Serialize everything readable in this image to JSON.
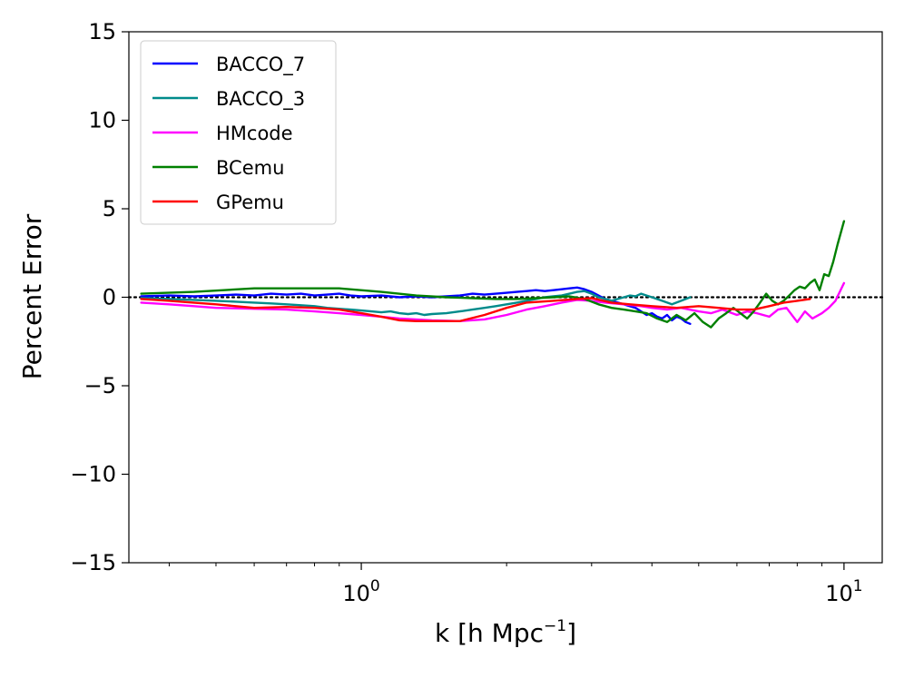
{
  "chart_data": {
    "type": "line",
    "title": "",
    "xlabel": "k [h Mpc",
    "xlabel_superscript": "−1",
    "xlabel_suffix": "]",
    "ylabel": "Percent Error",
    "xscale": "log",
    "xlim": [
      0.33,
      12
    ],
    "ylim": [
      -15,
      15
    ],
    "x_major_ticks": [
      {
        "value": 1,
        "base": "10",
        "exp": "0"
      },
      {
        "value": 10,
        "base": "10",
        "exp": "1"
      }
    ],
    "x_minor_ticks": [
      0.4,
      0.5,
      0.6,
      0.7,
      0.8,
      0.9,
      2,
      3,
      4,
      5,
      6,
      7,
      8,
      9
    ],
    "y_ticks": [
      {
        "value": 15,
        "label": "15"
      },
      {
        "value": 10,
        "label": "10"
      },
      {
        "value": 5,
        "label": "5"
      },
      {
        "value": 0,
        "label": "0"
      },
      {
        "value": -5,
        "label": "−5"
      },
      {
        "value": -10,
        "label": "−10"
      },
      {
        "value": -15,
        "label": "−15"
      }
    ],
    "reference_line": {
      "y": 0,
      "style": "dotted",
      "color": "#000000"
    },
    "grid": false,
    "legend_position": "top-left",
    "series": [
      {
        "name": "BACCO_7",
        "color": "#0000ff",
        "x": [
          0.35,
          0.4,
          0.45,
          0.5,
          0.55,
          0.6,
          0.65,
          0.7,
          0.75,
          0.8,
          0.85,
          0.9,
          0.95,
          1.0,
          1.1,
          1.2,
          1.3,
          1.4,
          1.5,
          1.6,
          1.7,
          1.8,
          1.9,
          2.0,
          2.1,
          2.2,
          2.3,
          2.4,
          2.5,
          2.6,
          2.7,
          2.8,
          2.9,
          3.0,
          3.1,
          3.2,
          3.3,
          3.4,
          3.5,
          3.6,
          3.7,
          3.8,
          3.9,
          4.0,
          4.1,
          4.2,
          4.3,
          4.4,
          4.5,
          4.6,
          4.7,
          4.8
        ],
        "y": [
          0.05,
          0.1,
          0.05,
          0.1,
          0.15,
          0.1,
          0.2,
          0.15,
          0.2,
          0.1,
          0.15,
          0.2,
          0.1,
          0.05,
          0.1,
          0.0,
          0.05,
          0.0,
          0.05,
          0.1,
          0.2,
          0.15,
          0.2,
          0.25,
          0.3,
          0.35,
          0.4,
          0.35,
          0.4,
          0.45,
          0.5,
          0.55,
          0.45,
          0.3,
          0.1,
          -0.1,
          -0.2,
          -0.3,
          -0.4,
          -0.5,
          -0.6,
          -0.8,
          -1.0,
          -0.9,
          -1.1,
          -1.2,
          -1.0,
          -1.3,
          -1.1,
          -1.2,
          -1.4,
          -1.5
        ]
      },
      {
        "name": "BACCO_3",
        "color": "#008b8b",
        "x": [
          0.35,
          0.4,
          0.45,
          0.5,
          0.55,
          0.6,
          0.65,
          0.7,
          0.75,
          0.8,
          0.85,
          0.9,
          0.95,
          1.0,
          1.05,
          1.1,
          1.15,
          1.2,
          1.25,
          1.3,
          1.35,
          1.4,
          1.5,
          1.6,
          1.7,
          1.8,
          1.9,
          2.0,
          2.1,
          2.2,
          2.3,
          2.4,
          2.5,
          2.6,
          2.7,
          2.8,
          2.9,
          3.0,
          3.1,
          3.2,
          3.3,
          3.4,
          3.5,
          3.6,
          3.7,
          3.8,
          3.9,
          4.0,
          4.2,
          4.4,
          4.6,
          4.8
        ],
        "y": [
          -0.05,
          -0.1,
          -0.15,
          -0.2,
          -0.25,
          -0.3,
          -0.35,
          -0.4,
          -0.45,
          -0.5,
          -0.6,
          -0.65,
          -0.7,
          -0.75,
          -0.8,
          -0.85,
          -0.8,
          -0.9,
          -0.95,
          -0.9,
          -1.0,
          -0.95,
          -0.9,
          -0.8,
          -0.7,
          -0.6,
          -0.5,
          -0.4,
          -0.3,
          -0.2,
          -0.1,
          0.0,
          0.05,
          0.1,
          0.2,
          0.3,
          0.35,
          0.2,
          0.0,
          -0.1,
          -0.2,
          -0.1,
          0.0,
          0.1,
          0.05,
          0.2,
          0.1,
          0.0,
          -0.2,
          -0.4,
          -0.2,
          0.0
        ]
      },
      {
        "name": "HMcode",
        "color": "#ff00ff",
        "x": [
          0.35,
          0.4,
          0.45,
          0.5,
          0.6,
          0.7,
          0.8,
          0.9,
          1.0,
          1.1,
          1.2,
          1.4,
          1.6,
          1.8,
          2.0,
          2.2,
          2.4,
          2.6,
          2.8,
          3.0,
          3.2,
          3.5,
          3.8,
          4.0,
          4.3,
          4.6,
          5.0,
          5.3,
          5.6,
          6.0,
          6.3,
          6.6,
          7.0,
          7.3,
          7.6,
          8.0,
          8.3,
          8.6,
          9.0,
          9.3,
          9.6,
          10.0
        ],
        "y": [
          -0.3,
          -0.4,
          -0.5,
          -0.6,
          -0.65,
          -0.7,
          -0.8,
          -0.9,
          -1.0,
          -1.1,
          -1.2,
          -1.3,
          -1.35,
          -1.25,
          -1.0,
          -0.7,
          -0.5,
          -0.3,
          -0.15,
          -0.2,
          -0.3,
          -0.4,
          -0.5,
          -0.6,
          -0.7,
          -0.6,
          -0.8,
          -0.9,
          -0.7,
          -1.0,
          -0.8,
          -0.9,
          -1.1,
          -0.7,
          -0.6,
          -1.4,
          -0.8,
          -1.2,
          -0.9,
          -0.6,
          -0.2,
          0.8
        ]
      },
      {
        "name": "BCemu",
        "color": "#008000",
        "x": [
          0.35,
          0.45,
          0.6,
          0.75,
          0.9,
          1.1,
          1.3,
          1.5,
          1.7,
          1.9,
          2.1,
          2.3,
          2.5,
          2.7,
          2.9,
          3.1,
          3.3,
          3.5,
          3.7,
          3.9,
          4.1,
          4.3,
          4.5,
          4.7,
          4.9,
          5.1,
          5.3,
          5.5,
          5.7,
          5.9,
          6.1,
          6.3,
          6.5,
          6.7,
          6.9,
          7.1,
          7.3,
          7.5,
          7.7,
          7.9,
          8.1,
          8.3,
          8.5,
          8.7,
          8.9,
          9.1,
          9.3,
          9.5,
          9.7,
          10.0
        ],
        "y": [
          0.2,
          0.3,
          0.5,
          0.5,
          0.5,
          0.3,
          0.1,
          0.0,
          -0.05,
          -0.1,
          -0.1,
          -0.05,
          0.0,
          0.05,
          -0.1,
          -0.4,
          -0.6,
          -0.7,
          -0.8,
          -0.9,
          -1.2,
          -1.4,
          -1.0,
          -1.3,
          -0.9,
          -1.4,
          -1.7,
          -1.2,
          -0.9,
          -0.6,
          -0.9,
          -1.2,
          -0.8,
          -0.3,
          0.2,
          -0.2,
          -0.4,
          -0.2,
          0.1,
          0.4,
          0.6,
          0.5,
          0.8,
          1.0,
          0.4,
          1.3,
          1.2,
          2.0,
          3.0,
          4.3
        ]
      },
      {
        "name": "GPemu",
        "color": "#ff0000",
        "x": [
          0.35,
          0.4,
          0.5,
          0.6,
          0.7,
          0.8,
          0.9,
          1.0,
          1.1,
          1.2,
          1.3,
          1.4,
          1.5,
          1.6,
          1.8,
          2.0,
          2.2,
          2.5,
          2.8,
          3.0,
          3.3,
          3.6,
          4.0,
          4.5,
          5.0,
          5.5,
          6.0,
          6.5,
          7.0,
          7.5,
          8.0,
          8.5
        ],
        "y": [
          -0.1,
          -0.2,
          -0.4,
          -0.6,
          -0.55,
          -0.6,
          -0.7,
          -0.9,
          -1.1,
          -1.3,
          -1.35,
          -1.35,
          -1.35,
          -1.35,
          -1.0,
          -0.6,
          -0.3,
          -0.2,
          -0.1,
          -0.05,
          -0.3,
          -0.4,
          -0.5,
          -0.6,
          -0.5,
          -0.6,
          -0.7,
          -0.7,
          -0.5,
          -0.3,
          -0.2,
          -0.1
        ]
      }
    ]
  }
}
